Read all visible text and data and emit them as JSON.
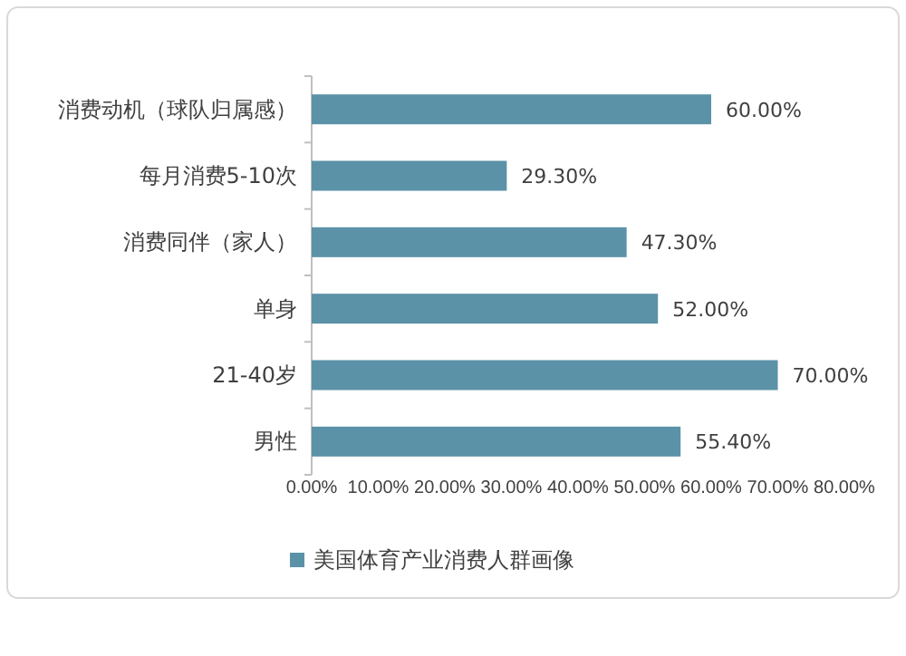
{
  "chart_data": {
    "type": "bar",
    "orientation": "horizontal",
    "categories": [
      "消费动机（球队归属感）",
      "每月消费5-10次",
      "消费同伴（家人）",
      "单身",
      "21-40岁",
      "男性"
    ],
    "series": [
      {
        "name": "美国体育产业消费人群画像",
        "color": "#5b92a8",
        "values": [
          60,
          29.3,
          47.3,
          52,
          70,
          55.4
        ],
        "value_labels": [
          "60.00%",
          "29.30%",
          "47.30%",
          "52.00%",
          "70.00%",
          "55.40%"
        ]
      }
    ],
    "xlim": [
      0,
      80
    ],
    "xticks": [
      {
        "value": 0,
        "label": "0.00%"
      },
      {
        "value": 10,
        "label": "10.00%"
      },
      {
        "value": 20,
        "label": "20.00%"
      },
      {
        "value": 30,
        "label": "30.00%"
      },
      {
        "value": 40,
        "label": "40.00%"
      },
      {
        "value": 50,
        "label": "50.00%"
      },
      {
        "value": 60,
        "label": "60.00%"
      },
      {
        "value": 70,
        "label": "70.00%"
      },
      {
        "value": 80,
        "label": "80.00%"
      }
    ],
    "legend": "bottom"
  }
}
